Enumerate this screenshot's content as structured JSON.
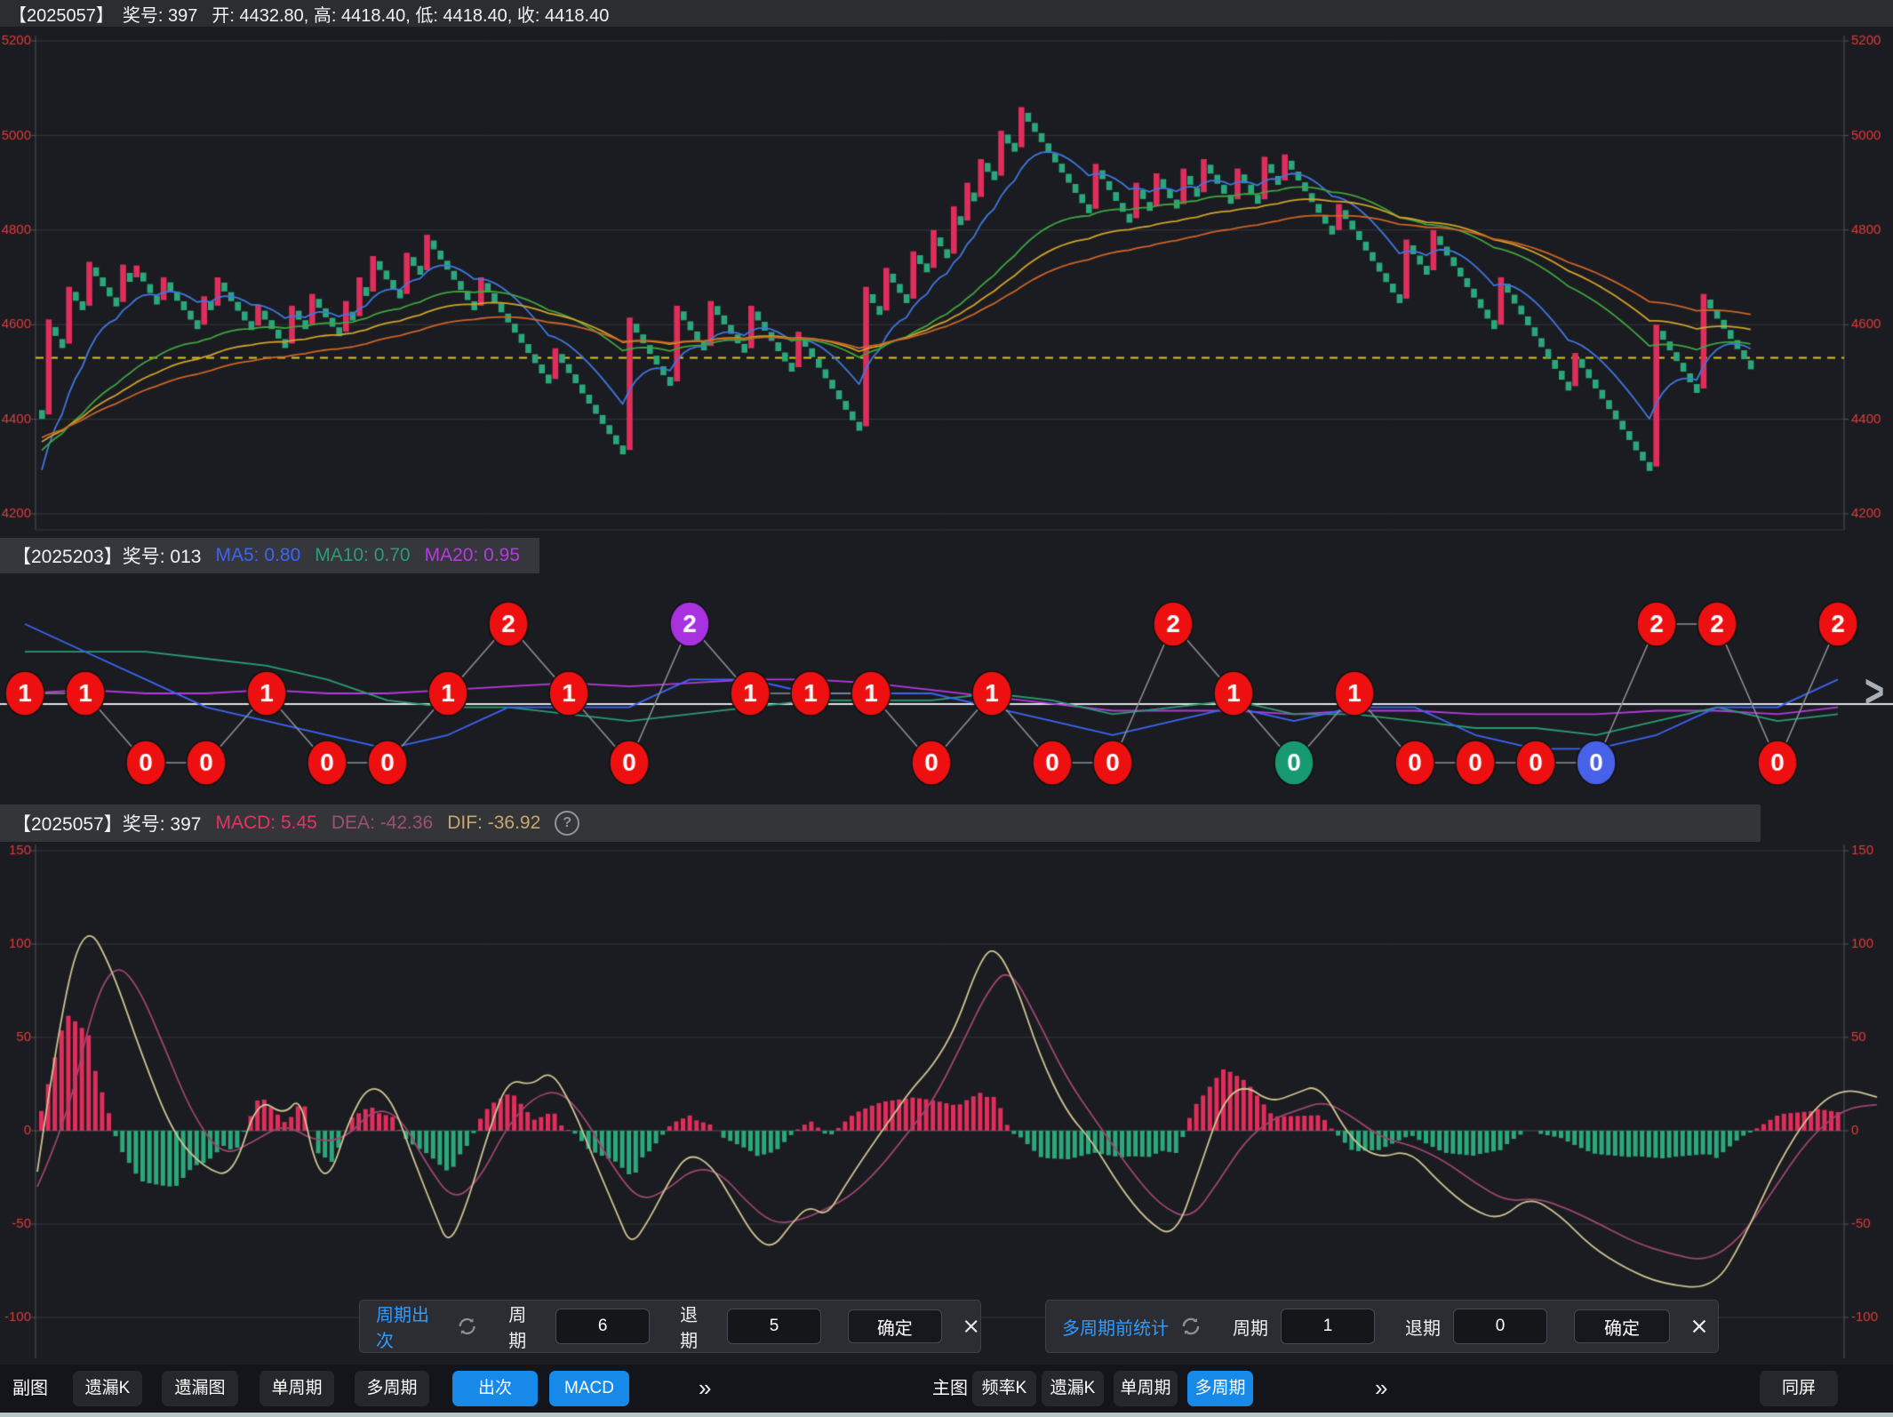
{
  "header_main": {
    "issue": "【2025057】",
    "number": "奖号: 397",
    "ohlc": "开: 4432.80, 高: 4418.40, 低: 4418.40, 收: 4418.40"
  },
  "header_cycle": {
    "issue": "【2025203】奖号: 013",
    "ma5": "MA5: 0.80",
    "ma10": "MA10: 0.70",
    "ma20": "MA20: 0.95"
  },
  "header_macd": {
    "issue": "【2025057】奖号: 397",
    "macd": "MACD: 5.45",
    "dea": "DEA: -42.36",
    "dif": "DIF: -36.92",
    "help": "?"
  },
  "colors": {
    "accent_blue": "#1789e8",
    "panel_title_blue": "#2f9bff",
    "candle_up": "#df2e5b",
    "candle_down": "#2ca77b",
    "axis_label": "#e33a3a",
    "grid": "#34373c",
    "axis_line": "#50545a",
    "ref_line": "#d8c520",
    "ma_blue": "#3d78e0",
    "ma_green": "#3fa53f",
    "ma_yellow": "#d2a32a",
    "ma_orange": "#cc6428",
    "dif_line": "#cfc493",
    "dea_line": "#9c4670",
    "cycle_ma5": "#3b66f5",
    "cycle_ma10": "#2a9d72",
    "cycle_ma20": "#b63ae0",
    "cycle_baseline": "#dfe3e6",
    "cycle_link": "#8a8f98",
    "circle_red": "#ee1010",
    "circle_purple": "#a832e0",
    "circle_green": "#189a70",
    "circle_blue": "#4761e8",
    "header_text_macd": "#e8325f",
    "header_text_dea": "#9f4f75",
    "header_text_dif": "#c9a66b"
  },
  "chart_data": [
    {
      "type": "candlestick-ladder",
      "title": "主图 遗漏K",
      "y_axis_ticks": [
        5200,
        5000,
        4800,
        4600,
        4400,
        4200
      ],
      "ylim": [
        4200,
        5200
      ],
      "grid": true,
      "ref_line_value": 4530,
      "start_value": 4410,
      "runs": [
        [
          "u",
          4611
        ],
        [
          "d",
          4560
        ],
        [
          "u",
          4680
        ],
        [
          "d",
          4640
        ],
        [
          "u",
          4733
        ],
        [
          "d",
          4648
        ],
        [
          "u",
          4727
        ],
        [
          "d",
          4700
        ],
        [
          "u",
          4725
        ],
        [
          "d",
          4652
        ],
        [
          "u",
          4700
        ],
        [
          "d",
          4600
        ],
        [
          "u",
          4660
        ],
        [
          "d",
          4640
        ],
        [
          "u",
          4700
        ],
        [
          "d",
          4598
        ],
        [
          "u",
          4640
        ],
        [
          "d",
          4560
        ],
        [
          "u",
          4640
        ],
        [
          "d",
          4600
        ],
        [
          "u",
          4665
        ],
        [
          "d",
          4585
        ],
        [
          "u",
          4650
        ],
        [
          "d",
          4618
        ],
        [
          "u",
          4700
        ],
        [
          "d",
          4670
        ],
        [
          "u",
          4745
        ],
        [
          "d",
          4665
        ],
        [
          "u",
          4752
        ],
        [
          "d",
          4715
        ],
        [
          "u",
          4790
        ],
        [
          "d",
          4640
        ],
        [
          "u",
          4700
        ],
        [
          "d",
          4485
        ],
        [
          "u",
          4550
        ],
        [
          "d",
          4335
        ],
        [
          "u",
          4615
        ],
        [
          "d",
          4480
        ],
        [
          "u",
          4640
        ],
        [
          "d",
          4555
        ],
        [
          "u",
          4650
        ],
        [
          "d",
          4550
        ],
        [
          "u",
          4640
        ],
        [
          "d",
          4510
        ],
        [
          "u",
          4585
        ],
        [
          "d",
          4385
        ],
        [
          "u",
          4680
        ],
        [
          "d",
          4630
        ],
        [
          "u",
          4720
        ],
        [
          "d",
          4655
        ],
        [
          "u",
          4755
        ],
        [
          "d",
          4720
        ],
        [
          "u",
          4800
        ],
        [
          "d",
          4750
        ],
        [
          "u",
          4850
        ],
        [
          "d",
          4820
        ],
        [
          "u",
          4900
        ],
        [
          "d",
          4870
        ],
        [
          "u",
          4950
        ],
        [
          "d",
          4915
        ],
        [
          "u",
          5010
        ],
        [
          "d",
          4975
        ],
        [
          "u",
          5060
        ],
        [
          "d",
          4845
        ],
        [
          "u",
          4940
        ],
        [
          "d",
          4825
        ],
        [
          "u",
          4900
        ],
        [
          "d",
          4850
        ],
        [
          "u",
          4920
        ],
        [
          "d",
          4855
        ],
        [
          "u",
          4930
        ],
        [
          "d",
          4880
        ],
        [
          "u",
          4950
        ],
        [
          "d",
          4865
        ],
        [
          "u",
          4930
        ],
        [
          "d",
          4865
        ],
        [
          "u",
          4955
        ],
        [
          "d",
          4905
        ],
        [
          "u",
          4960
        ],
        [
          "d",
          4800
        ],
        [
          "u",
          4855
        ],
        [
          "d",
          4655
        ],
        [
          "u",
          4780
        ],
        [
          "d",
          4715
        ],
        [
          "u",
          4800
        ],
        [
          "d",
          4600
        ],
        [
          "u",
          4700
        ],
        [
          "d",
          4470
        ],
        [
          "u",
          4540
        ],
        [
          "d",
          4300
        ],
        [
          "u",
          4600
        ],
        [
          "d",
          4465
        ],
        [
          "u",
          4665
        ],
        [
          "d",
          4515
        ]
      ]
    },
    {
      "type": "scatter-line",
      "title": "副图 出次",
      "legend": [
        "MA5",
        "MA10",
        "MA20"
      ],
      "value_levels": [
        0,
        1,
        2
      ],
      "series": [
        {
          "v": 1,
          "color": "red"
        },
        {
          "v": 1,
          "color": "red"
        },
        {
          "v": 0,
          "color": "red"
        },
        {
          "v": 0,
          "color": "red"
        },
        {
          "v": 1,
          "color": "red"
        },
        {
          "v": 0,
          "color": "red"
        },
        {
          "v": 0,
          "color": "red"
        },
        {
          "v": 1,
          "color": "red"
        },
        {
          "v": 2,
          "color": "red"
        },
        {
          "v": 1,
          "color": "red"
        },
        {
          "v": 0,
          "color": "red"
        },
        {
          "v": 2,
          "color": "purple"
        },
        {
          "v": 1,
          "color": "red"
        },
        {
          "v": 1,
          "color": "red"
        },
        {
          "v": 1,
          "color": "red"
        },
        {
          "v": 0,
          "color": "red"
        },
        {
          "v": 1,
          "color": "red"
        },
        {
          "v": 0,
          "color": "red"
        },
        {
          "v": 0,
          "color": "red"
        },
        {
          "v": 2,
          "color": "red"
        },
        {
          "v": 1,
          "color": "red"
        },
        {
          "v": 0,
          "color": "green"
        },
        {
          "v": 1,
          "color": "red"
        },
        {
          "v": 0,
          "color": "red"
        },
        {
          "v": 0,
          "color": "red"
        },
        {
          "v": 0,
          "color": "red"
        },
        {
          "v": 0,
          "color": "blue"
        },
        {
          "v": 2,
          "color": "red"
        },
        {
          "v": 2,
          "color": "red"
        },
        {
          "v": 0,
          "color": "red"
        },
        {
          "v": 2,
          "color": "red"
        }
      ]
    },
    {
      "type": "macd",
      "title": "副图 MACD",
      "y_axis_ticks": [
        150,
        100,
        50,
        0,
        -50,
        -100
      ],
      "ylim": [
        -100,
        150
      ],
      "grid": true,
      "dif": [
        [
          42,
          -22
        ],
        [
          70,
          70
        ],
        [
          97,
          112
        ],
        [
          125,
          88
        ],
        [
          160,
          40
        ],
        [
          195,
          -2
        ],
        [
          230,
          -20
        ],
        [
          262,
          -25
        ],
        [
          290,
          18
        ],
        [
          320,
          8
        ],
        [
          338,
          19
        ],
        [
          355,
          -20
        ],
        [
          372,
          -25
        ],
        [
          392,
          5
        ],
        [
          415,
          25
        ],
        [
          440,
          18
        ],
        [
          465,
          -15
        ],
        [
          490,
          -45
        ],
        [
          505,
          -62
        ],
        [
          525,
          -40
        ],
        [
          550,
          0
        ],
        [
          572,
          28
        ],
        [
          598,
          24
        ],
        [
          620,
          33
        ],
        [
          645,
          12
        ],
        [
          668,
          -15
        ],
        [
          695,
          -45
        ],
        [
          710,
          -62
        ],
        [
          730,
          -48
        ],
        [
          755,
          -25
        ],
        [
          775,
          -12
        ],
        [
          800,
          -18
        ],
        [
          825,
          -38
        ],
        [
          850,
          -58
        ],
        [
          870,
          -63
        ],
        [
          890,
          -50
        ],
        [
          910,
          -40
        ],
        [
          930,
          -46
        ],
        [
          950,
          -30
        ],
        [
          975,
          -12
        ],
        [
          1000,
          5
        ],
        [
          1025,
          22
        ],
        [
          1050,
          35
        ],
        [
          1075,
          55
        ],
        [
          1100,
          88
        ],
        [
          1118,
          100
        ],
        [
          1142,
          80
        ],
        [
          1170,
          40
        ],
        [
          1200,
          10
        ],
        [
          1228,
          -5
        ],
        [
          1260,
          -30
        ],
        [
          1290,
          -48
        ],
        [
          1322,
          -58
        ],
        [
          1350,
          -20
        ],
        [
          1375,
          15
        ],
        [
          1400,
          25
        ],
        [
          1430,
          15
        ],
        [
          1458,
          20
        ],
        [
          1485,
          25
        ],
        [
          1520,
          -5
        ],
        [
          1552,
          -15
        ],
        [
          1585,
          -10
        ],
        [
          1620,
          -28
        ],
        [
          1655,
          -42
        ],
        [
          1688,
          -48
        ],
        [
          1720,
          -35
        ],
        [
          1755,
          -45
        ],
        [
          1790,
          -62
        ],
        [
          1830,
          -74
        ],
        [
          1870,
          -82
        ],
        [
          1928,
          -85
        ],
        [
          1962,
          -58
        ],
        [
          2000,
          -18
        ],
        [
          2040,
          12
        ],
        [
          2075,
          23
        ],
        [
          2112,
          18
        ]
      ],
      "dea": [
        [
          42,
          -30
        ],
        [
          75,
          5
        ],
        [
          105,
          68
        ],
        [
          130,
          90
        ],
        [
          155,
          78
        ],
        [
          185,
          45
        ],
        [
          215,
          10
        ],
        [
          250,
          -14
        ],
        [
          285,
          -6
        ],
        [
          320,
          4
        ],
        [
          355,
          -6
        ],
        [
          390,
          -4
        ],
        [
          420,
          12
        ],
        [
          450,
          8
        ],
        [
          480,
          -18
        ],
        [
          510,
          -38
        ],
        [
          540,
          -26
        ],
        [
          570,
          2
        ],
        [
          600,
          18
        ],
        [
          630,
          22
        ],
        [
          660,
          6
        ],
        [
          690,
          -20
        ],
        [
          720,
          -38
        ],
        [
          750,
          -32
        ],
        [
          780,
          -20
        ],
        [
          810,
          -22
        ],
        [
          840,
          -38
        ],
        [
          870,
          -50
        ],
        [
          900,
          -48
        ],
        [
          930,
          -42
        ],
        [
          960,
          -34
        ],
        [
          990,
          -20
        ],
        [
          1020,
          -2
        ],
        [
          1050,
          16
        ],
        [
          1080,
          44
        ],
        [
          1110,
          74
        ],
        [
          1135,
          88
        ],
        [
          1165,
          62
        ],
        [
          1200,
          28
        ],
        [
          1235,
          4
        ],
        [
          1270,
          -20
        ],
        [
          1305,
          -40
        ],
        [
          1340,
          -48
        ],
        [
          1370,
          -28
        ],
        [
          1400,
          -6
        ],
        [
          1430,
          6
        ],
        [
          1460,
          11
        ],
        [
          1490,
          16
        ],
        [
          1520,
          8
        ],
        [
          1555,
          -4
        ],
        [
          1590,
          -8
        ],
        [
          1625,
          -16
        ],
        [
          1660,
          -28
        ],
        [
          1695,
          -38
        ],
        [
          1730,
          -36
        ],
        [
          1765,
          -42
        ],
        [
          1800,
          -50
        ],
        [
          1840,
          -60
        ],
        [
          1880,
          -66
        ],
        [
          1920,
          -70
        ],
        [
          1958,
          -58
        ],
        [
          1995,
          -32
        ],
        [
          2035,
          -4
        ],
        [
          2075,
          12
        ],
        [
          2112,
          14
        ]
      ]
    }
  ],
  "panels": {
    "left": {
      "title": "周期出次",
      "period_label": "周期",
      "period_value": "6",
      "back_label": "退期",
      "back_value": "5",
      "confirm": "确定"
    },
    "right": {
      "title": "多周期前统计",
      "period_label": "周期",
      "period_value": "1",
      "back_label": "退期",
      "back_value": "0",
      "confirm": "确定"
    }
  },
  "toolbar": {
    "left_label": "副图",
    "left_buttons": [
      {
        "label": "遗漏K",
        "active": false
      },
      {
        "label": "遗漏图",
        "active": false
      },
      {
        "label": "单周期",
        "active": false
      },
      {
        "label": "多周期",
        "active": false
      },
      {
        "label": "出次",
        "active": true
      },
      {
        "label": "MACD",
        "active": true
      }
    ],
    "more_left": "»",
    "right_label": "主图",
    "right_buttons": [
      {
        "label": "频率K",
        "active": false
      },
      {
        "label": "遗漏K",
        "active": false
      },
      {
        "label": "单周期",
        "active": false
      },
      {
        "label": "多周期",
        "active": true
      }
    ],
    "more_right": "»",
    "sync_screen": "同屏"
  },
  "misc": {
    "right_scroll_chevron": ">"
  }
}
